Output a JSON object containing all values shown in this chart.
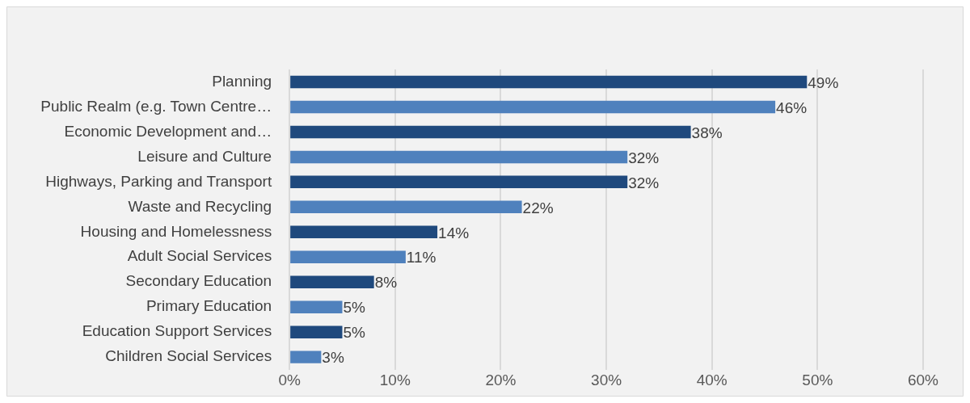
{
  "chart_data": {
    "type": "bar",
    "orientation": "horizontal",
    "categories": [
      "Planning",
      "Public Realm (e.g. Town Centre…",
      "Economic Development and…",
      "Leisure and Culture",
      "Highways, Parking and Transport",
      "Waste and Recycling",
      "Housing and Homelessness",
      "Adult Social Services",
      "Secondary Education",
      "Primary Education",
      "Education Support Services",
      "Children Social Services"
    ],
    "values": [
      49,
      46,
      38,
      32,
      32,
      22,
      14,
      11,
      8,
      5,
      5,
      3
    ],
    "colors": [
      "#1f497d",
      "#4f81bd",
      "#1f497d",
      "#4f81bd",
      "#1f497d",
      "#4f81bd",
      "#1f497d",
      "#4f81bd",
      "#1f497d",
      "#4f81bd",
      "#1f497d",
      "#4f81bd"
    ],
    "value_labels": [
      "49%",
      "46%",
      "38%",
      "32%",
      "32%",
      "22%",
      "14%",
      "11%",
      "8%",
      "5%",
      "5%",
      "3%"
    ],
    "xlim": [
      0,
      60
    ],
    "xticks": [
      {
        "value": 0,
        "label": "0%"
      },
      {
        "value": 10,
        "label": "10%"
      },
      {
        "value": 20,
        "label": "20%"
      },
      {
        "value": 30,
        "label": "30%"
      },
      {
        "value": 40,
        "label": "40%"
      },
      {
        "value": 50,
        "label": "50%"
      },
      {
        "value": 60,
        "label": "60%"
      }
    ],
    "grid": "x",
    "legend": false
  }
}
